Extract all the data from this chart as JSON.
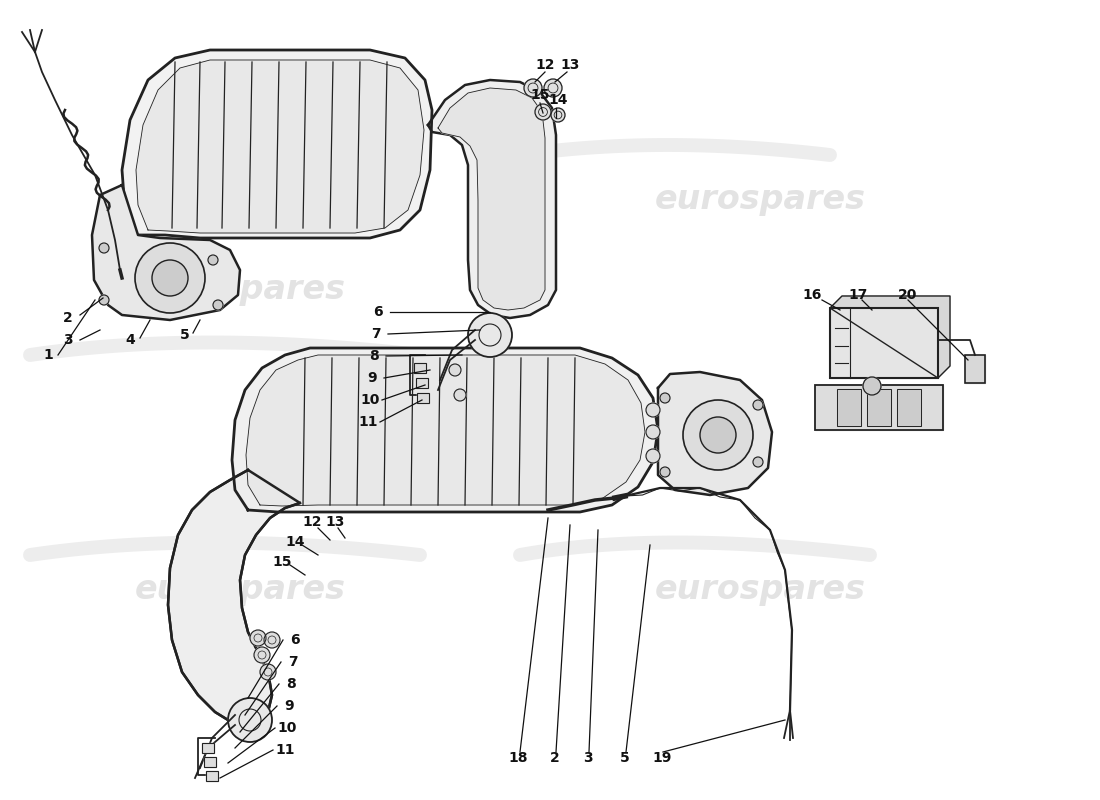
{
  "bg_color": "#ffffff",
  "line_color": "#222222",
  "watermark_color": "#cccccc",
  "watermark_text": "eurospares",
  "label_fontsize": 10,
  "label_color": "#111111",
  "figsize": [
    11.0,
    8.0
  ],
  "dpi": 100
}
